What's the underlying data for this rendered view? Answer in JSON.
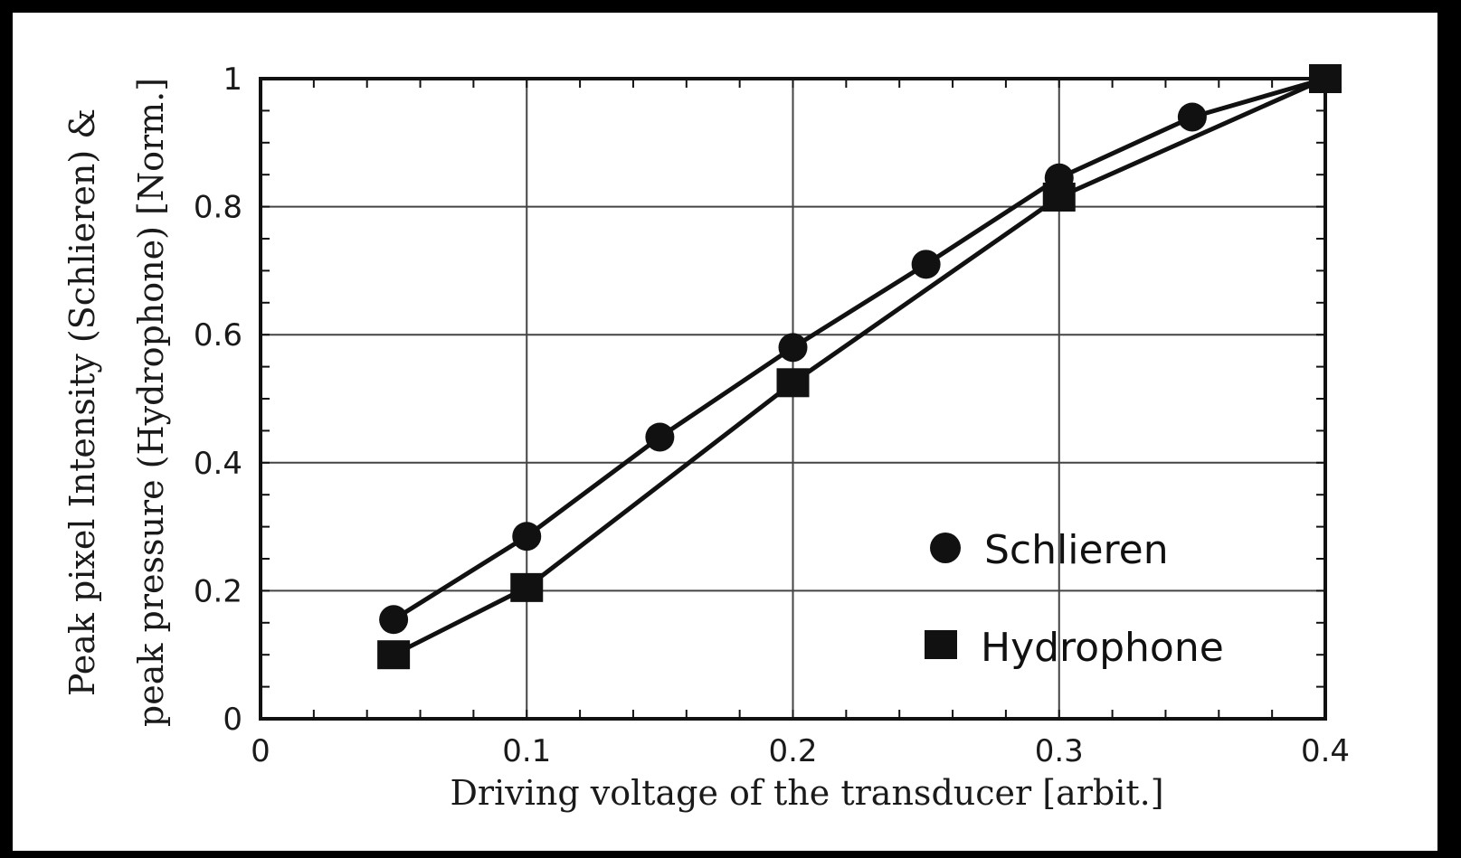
{
  "chart_data": {
    "type": "line",
    "xlabel": "Driving voltage of the transducer [arbit.]",
    "ylabel_line1": "Peak pixel Intensity (Schlieren) &",
    "ylabel_line2": "peak pressure (Hydrophone) [Norm.]",
    "xlim": [
      0,
      0.4
    ],
    "ylim": [
      0,
      1
    ],
    "x_ticks": [
      0,
      0.1,
      0.2,
      0.3,
      0.4
    ],
    "x_tick_labels": [
      "0",
      "0.1",
      "0.2",
      "0.3",
      "0.4"
    ],
    "y_ticks": [
      0,
      0.2,
      0.4,
      0.6,
      0.8,
      1
    ],
    "y_tick_labels": [
      "0",
      "0.2",
      "0.4",
      "0.6",
      "0.8",
      "1"
    ],
    "grid": true,
    "legend_position": "bottom-right",
    "series": [
      {
        "name": "Schlieren",
        "marker": "circle",
        "x": [
          0.05,
          0.1,
          0.15,
          0.2,
          0.25,
          0.3,
          0.35,
          0.4
        ],
        "y": [
          0.155,
          0.285,
          0.44,
          0.58,
          0.71,
          0.845,
          0.94,
          1.0
        ]
      },
      {
        "name": "Hydrophone",
        "marker": "square",
        "x": [
          0.05,
          0.1,
          0.2,
          0.3,
          0.4
        ],
        "y": [
          0.1,
          0.205,
          0.525,
          0.815,
          1.0
        ]
      }
    ],
    "colors": {
      "line": "#111111",
      "marker": "#111111",
      "grid": "#444444",
      "frame": "#111111"
    }
  }
}
